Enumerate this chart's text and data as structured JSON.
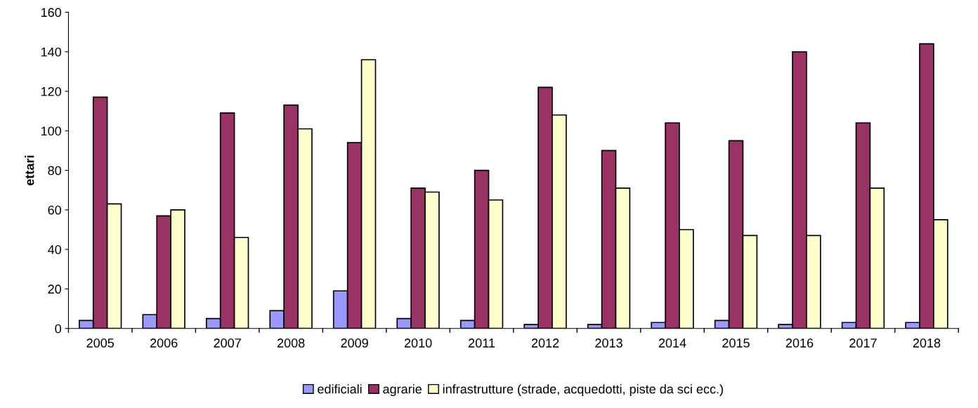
{
  "chart_data": {
    "type": "bar",
    "ylabel": "ettari",
    "categories": [
      "2005",
      "2006",
      "2007",
      "2008",
      "2009",
      "2010",
      "2011",
      "2012",
      "2013",
      "2014",
      "2015",
      "2016",
      "2017",
      "2018"
    ],
    "series": [
      {
        "name": "edificiali",
        "color": "#9999ff",
        "values": [
          4,
          7,
          5,
          9,
          19,
          5,
          4,
          2,
          2,
          3,
          4,
          2,
          3,
          3
        ]
      },
      {
        "name": "agrarie",
        "color": "#993366",
        "values": [
          117,
          57,
          109,
          113,
          94,
          71,
          80,
          122,
          90,
          104,
          95,
          140,
          104,
          144
        ]
      },
      {
        "name": "infrastrutture (strade, acquedotti, piste da sci ecc.)",
        "color": "#ffffcc",
        "values": [
          63,
          60,
          46,
          101,
          136,
          69,
          65,
          108,
          71,
          50,
          47,
          47,
          71,
          55
        ]
      }
    ],
    "ylim": [
      0,
      160
    ],
    "yticks": [
      0,
      20,
      40,
      60,
      80,
      100,
      120,
      140,
      160
    ],
    "grid": false,
    "legend": "bottom"
  }
}
